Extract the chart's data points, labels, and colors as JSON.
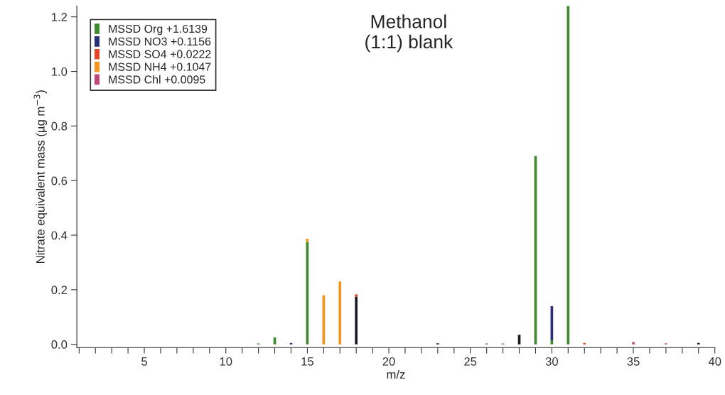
{
  "chart_data": {
    "type": "bar",
    "stacked": true,
    "title": "Methanol\n(1:1) blank",
    "xlabel": "m/z",
    "ylabel": "Nitrate equivalent mass (µg m$^{−3}$)",
    "x": [
      12,
      13,
      14,
      15,
      16,
      17,
      18,
      23,
      26,
      27,
      28,
      29,
      30,
      31,
      32,
      35,
      37,
      39
    ],
    "series": [
      {
        "color": "#1a1a24",
        "values": [
          0,
          0,
          0,
          0,
          0,
          0,
          0.175,
          0.004,
          0,
          0,
          0.035,
          0,
          0,
          0,
          0,
          0,
          0,
          0.005
        ]
      },
      {
        "name": "MSSD Org +1.6139",
        "color": "#3f8a2e",
        "values": [
          0.003,
          0.025,
          0,
          0.375,
          0,
          0,
          0,
          0,
          0.003,
          0.003,
          0,
          0.69,
          0.015,
          1.24,
          0,
          0,
          0,
          0
        ]
      },
      {
        "name": "MSSD NO3 +0.1156",
        "color": "#2b2f7a",
        "values": [
          0,
          0,
          0.005,
          0,
          0,
          0,
          0,
          0,
          0,
          0,
          0,
          0,
          0.125,
          0,
          0,
          0,
          0,
          0
        ]
      },
      {
        "name": "MSSD SO4 +0.0222",
        "color": "#e8452a",
        "values": [
          0,
          0,
          0,
          0,
          0,
          0,
          0.008,
          0,
          0,
          0,
          0,
          0,
          0,
          0,
          0.005,
          0,
          0,
          0
        ]
      },
      {
        "name": "MSSD NH4 +0.1047",
        "color": "#f7941d",
        "values": [
          0,
          0,
          0,
          0.012,
          0.18,
          0.23,
          0,
          0,
          0,
          0,
          0,
          0,
          0,
          0,
          0,
          0,
          0,
          0
        ]
      },
      {
        "name": "MSSD Chl +0.0095",
        "color": "#c0477a",
        "values": [
          0,
          0,
          0,
          0,
          0,
          0,
          0,
          0,
          0,
          0,
          0,
          0,
          0,
          0,
          0,
          0.008,
          0.004,
          0
        ]
      }
    ],
    "xlim": [
      0.86,
      40
    ],
    "xticks": [
      {
        "value": 1,
        "label": null
      },
      {
        "value": 2,
        "label": null
      },
      {
        "value": 3,
        "label": null
      },
      {
        "value": 4,
        "label": null
      },
      5,
      {
        "value": 6,
        "label": null
      },
      {
        "value": 7,
        "label": null
      },
      {
        "value": 8,
        "label": null
      },
      {
        "value": 9,
        "label": null
      },
      10,
      {
        "value": 11,
        "label": null
      },
      {
        "value": 12,
        "label": null
      },
      {
        "value": 13,
        "label": null
      },
      {
        "value": 14,
        "label": null
      },
      15,
      {
        "value": 16,
        "label": null
      },
      {
        "value": 17,
        "label": null
      },
      {
        "value": 18,
        "label": null
      },
      {
        "value": 19,
        "label": null
      },
      20,
      {
        "value": 21,
        "label": null
      },
      {
        "value": 22,
        "label": null
      },
      {
        "value": 23,
        "label": null
      },
      {
        "value": 24,
        "label": null
      },
      25,
      {
        "value": 26,
        "label": null
      },
      {
        "value": 27,
        "label": null
      },
      {
        "value": 28,
        "label": null
      },
      {
        "value": 29,
        "label": null
      },
      30,
      {
        "value": 31,
        "label": null
      },
      {
        "value": 32,
        "label": null
      },
      {
        "value": 33,
        "label": null
      },
      {
        "value": 34,
        "label": null
      },
      35,
      {
        "value": 36,
        "label": null
      },
      {
        "value": 37,
        "label": null
      },
      {
        "value": 38,
        "label": null
      },
      {
        "value": 39,
        "label": null
      },
      40
    ],
    "ylim": [
      -0.012,
      1.24
    ],
    "yticks": [
      {
        "value": 0,
        "label": "0.0"
      },
      {
        "value": 0.2,
        "label": "0.2"
      },
      {
        "value": 0.4,
        "label": "0.4"
      },
      {
        "value": 0.6,
        "label": "0.6"
      },
      {
        "value": 0.8,
        "label": "0.8"
      },
      {
        "value": 1.0,
        "label": "1.0"
      },
      {
        "value": 1.2,
        "label": "1.2"
      }
    ],
    "legend": "top left",
    "grid": false
  }
}
